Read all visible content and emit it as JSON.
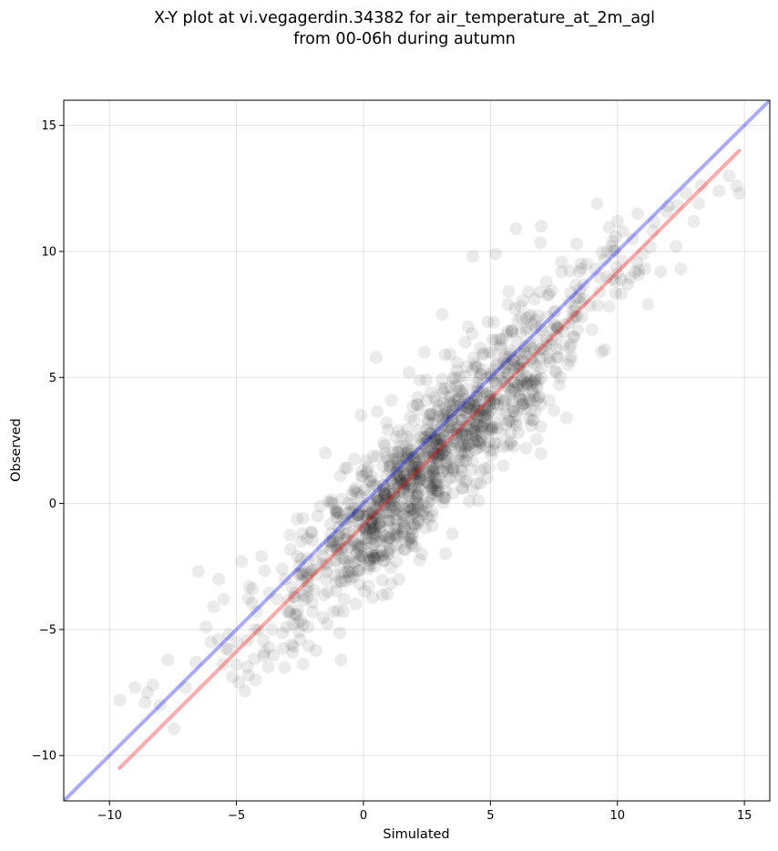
{
  "chart_data": {
    "type": "scatter",
    "title_lines": [
      "X-Y plot at vi.vegagerdin.34382 for air_temperature_at_2m_agl",
      "from 00-06h during autumn"
    ],
    "xlabel": "Simulated",
    "ylabel": "Observed",
    "xlim": [
      -11.8,
      16.0
    ],
    "ylim": [
      -11.8,
      16.0
    ],
    "xticks": [
      -10,
      -5,
      0,
      5,
      10,
      15
    ],
    "yticks": [
      -10,
      -5,
      0,
      5,
      10,
      15
    ],
    "xtick_labels": [
      "−10",
      "−5",
      "0",
      "5",
      "10",
      "15"
    ],
    "ytick_labels": [
      "−10",
      "−5",
      "0",
      "5",
      "10",
      "15"
    ],
    "grid": true,
    "point_color": "#000000",
    "point_opacity": 0.08,
    "lines": [
      {
        "role": "identity",
        "color": "#0000ff",
        "opacity": 0.33,
        "x": [
          -11.8,
          16.0
        ],
        "y": [
          -11.8,
          16.0
        ]
      },
      {
        "role": "fit",
        "color": "#ff0000",
        "opacity": 0.33,
        "x": [
          -9.6,
          14.8
        ],
        "y": [
          -10.5,
          14.0
        ]
      }
    ],
    "points": [
      [
        -9.6,
        -7.8
      ],
      [
        -9.0,
        -7.3
      ],
      [
        -8.6,
        -7.9
      ],
      [
        -8.5,
        -7.5
      ],
      [
        -8.3,
        -7.2
      ],
      [
        -8.0,
        -8.0
      ],
      [
        -7.7,
        -6.2
      ],
      [
        -7.0,
        -7.3
      ],
      [
        -6.6,
        -6.3
      ],
      [
        -6.5,
        -2.7
      ],
      [
        -6.2,
        -4.9
      ],
      [
        -6.0,
        -5.5
      ],
      [
        -5.9,
        -4.1
      ],
      [
        -5.7,
        -3.0
      ],
      [
        -5.5,
        -3.8
      ],
      [
        -5.3,
        -5.2
      ],
      [
        -5.0,
        -6.4
      ],
      [
        -4.9,
        -7.1
      ],
      [
        -4.8,
        -2.3
      ],
      [
        -4.5,
        -3.3
      ],
      [
        -4.2,
        -4.3
      ],
      [
        -4.0,
        -2.1
      ],
      [
        -3.9,
        -5.9
      ],
      [
        -3.6,
        -5.0
      ],
      [
        -3.4,
        -3.8
      ],
      [
        -3.2,
        -2.6
      ],
      [
        -3.1,
        -6.5
      ],
      [
        -2.9,
        -4.3
      ],
      [
        -2.6,
        -2.1
      ],
      [
        -2.5,
        -5.4
      ],
      [
        -2.4,
        -1.2
      ],
      [
        -2.2,
        -3.1
      ],
      [
        -2.0,
        -4.3
      ],
      [
        -1.8,
        -0.5
      ],
      [
        -1.6,
        -2.4
      ],
      [
        -1.5,
        2.0
      ],
      [
        -1.4,
        -3.5
      ],
      [
        -1.2,
        -1.5
      ],
      [
        -1.0,
        -2.0
      ],
      [
        -0.9,
        1.1
      ],
      [
        -0.7,
        -0.8
      ],
      [
        -0.6,
        0.0
      ],
      [
        -0.4,
        -2.9
      ],
      [
        -0.3,
        0.6
      ],
      [
        -0.2,
        -1.8
      ],
      [
        -0.1,
        3.5
      ],
      [
        0.0,
        -0.5
      ],
      [
        0.1,
        1.7
      ],
      [
        0.2,
        -2.6
      ],
      [
        0.3,
        0.9
      ],
      [
        0.4,
        -1.2
      ],
      [
        0.5,
        5.8
      ],
      [
        0.6,
        0.1
      ],
      [
        0.7,
        -1.9
      ],
      [
        0.8,
        2.4
      ],
      [
        0.9,
        1.1
      ],
      [
        1.0,
        -0.7
      ],
      [
        1.1,
        4.1
      ],
      [
        1.2,
        0.4
      ],
      [
        1.3,
        -2.3
      ],
      [
        1.4,
        1.8
      ],
      [
        1.5,
        2.7
      ],
      [
        1.6,
        -0.2
      ],
      [
        1.7,
        0.9
      ],
      [
        1.8,
        5.2
      ],
      [
        1.9,
        -1.0
      ],
      [
        2.0,
        3.3
      ],
      [
        2.1,
        0.3
      ],
      [
        2.2,
        1.5
      ],
      [
        2.3,
        -2.0
      ],
      [
        2.4,
        6.0
      ],
      [
        2.5,
        2.2
      ],
      [
        2.6,
        0.8
      ],
      [
        2.7,
        -0.5
      ],
      [
        2.8,
        4.2
      ],
      [
        2.9,
        1.6
      ],
      [
        3.0,
        2.8
      ],
      [
        3.1,
        7.5
      ],
      [
        3.2,
        0.2
      ],
      [
        3.3,
        3.6
      ],
      [
        3.4,
        1.0
      ],
      [
        3.5,
        -1.2
      ],
      [
        3.6,
        5.0
      ],
      [
        3.7,
        2.4
      ],
      [
        3.8,
        3.9
      ],
      [
        3.9,
        0.6
      ],
      [
        4.0,
        6.4
      ],
      [
        4.1,
        1.9
      ],
      [
        4.2,
        3.2
      ],
      [
        4.3,
        9.8
      ],
      [
        4.4,
        2.7
      ],
      [
        4.5,
        4.6
      ],
      [
        4.6,
        0.8
      ],
      [
        4.7,
        5.9
      ],
      [
        4.8,
        3.4
      ],
      [
        4.9,
        7.2
      ],
      [
        5.0,
        2.1
      ],
      [
        5.1,
        4.8
      ],
      [
        5.2,
        9.9
      ],
      [
        5.3,
        3.0
      ],
      [
        5.4,
        6.2
      ],
      [
        5.5,
        1.5
      ],
      [
        5.6,
        4.1
      ],
      [
        5.7,
        7.9
      ],
      [
        5.8,
        2.8
      ],
      [
        5.9,
        5.5
      ],
      [
        6.0,
        10.9
      ],
      [
        6.1,
        3.7
      ],
      [
        6.2,
        6.8
      ],
      [
        6.3,
        4.5
      ],
      [
        6.4,
        2.2
      ],
      [
        6.5,
        8.4
      ],
      [
        6.6,
        5.7
      ],
      [
        6.7,
        3.3
      ],
      [
        6.8,
        7.0
      ],
      [
        6.9,
        4.9
      ],
      [
        7.0,
        11.0
      ],
      [
        7.1,
        6.1
      ],
      [
        7.2,
        8.8
      ],
      [
        7.3,
        4.1
      ],
      [
        7.5,
        7.6
      ],
      [
        7.6,
        5.2
      ],
      [
        7.8,
        9.2
      ],
      [
        8.0,
        3.4
      ],
      [
        8.1,
        8.0
      ],
      [
        8.3,
        6.6
      ],
      [
        8.4,
        10.3
      ],
      [
        8.6,
        7.4
      ],
      [
        8.8,
        9.5
      ],
      [
        9.0,
        6.9
      ],
      [
        9.2,
        11.9
      ],
      [
        9.3,
        8.4
      ],
      [
        9.5,
        6.1
      ],
      [
        9.6,
        10.0
      ],
      [
        9.8,
        8.9
      ],
      [
        10.0,
        11.2
      ],
      [
        10.2,
        9.6
      ],
      [
        10.4,
        8.7
      ],
      [
        10.6,
        10.5
      ],
      [
        10.8,
        11.5
      ],
      [
        11.0,
        9.9
      ],
      [
        11.2,
        7.9
      ],
      [
        11.4,
        10.8
      ],
      [
        11.7,
        9.2
      ],
      [
        12.0,
        11.8
      ],
      [
        12.3,
        10.2
      ],
      [
        12.5,
        9.3
      ],
      [
        12.7,
        12.3
      ],
      [
        13.0,
        11.2
      ],
      [
        13.2,
        11.9
      ],
      [
        14.0,
        12.4
      ],
      [
        14.4,
        13.0
      ],
      [
        14.7,
        12.6
      ],
      [
        14.8,
        12.3
      ]
    ],
    "cloud": {
      "count": 1150,
      "seed": 34382,
      "x_range": [
        -9.6,
        14.8
      ],
      "slope": 1.0,
      "intercept": -1.0,
      "noise_sd": 1.35
    }
  }
}
